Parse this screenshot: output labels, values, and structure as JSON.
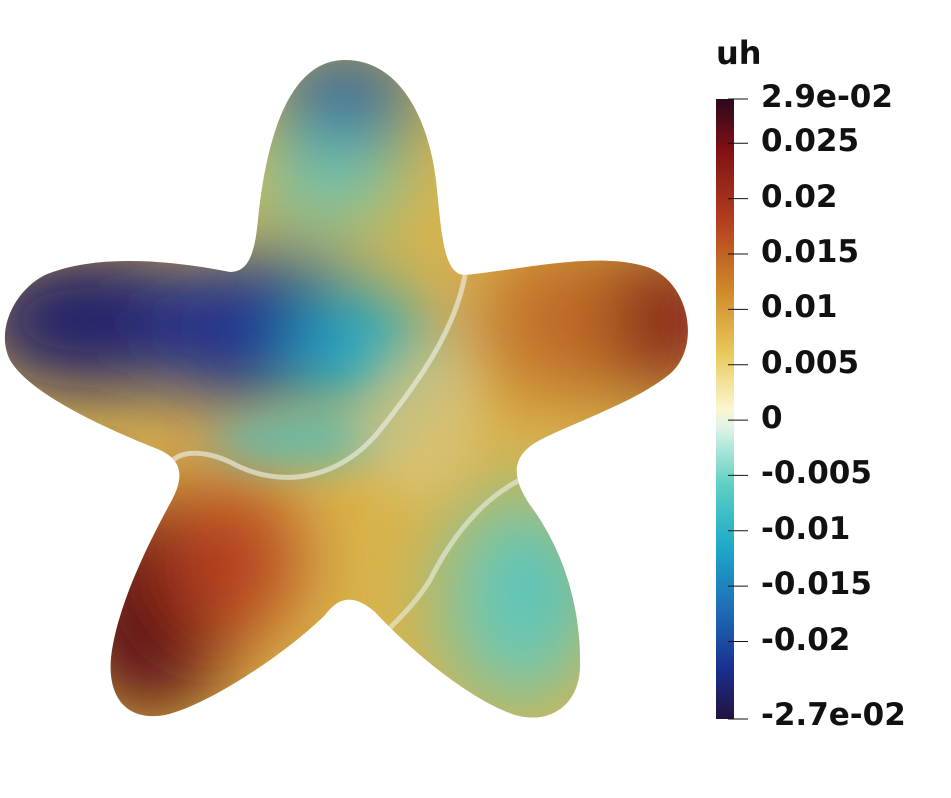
{
  "colorbar": {
    "title": "uh",
    "max_label": "2.9e-02",
    "min_label": "-2.7e-02",
    "min": -0.027,
    "max": 0.029,
    "ticks": [
      {
        "value": 0.025,
        "label": "0.025"
      },
      {
        "value": 0.02,
        "label": "0.02"
      },
      {
        "value": 0.015,
        "label": "0.015"
      },
      {
        "value": 0.01,
        "label": "0.01"
      },
      {
        "value": 0.005,
        "label": "0.005"
      },
      {
        "value": 0,
        "label": "0"
      },
      {
        "value": -0.005,
        "label": "-0.005"
      },
      {
        "value": -0.01,
        "label": "-0.01"
      },
      {
        "value": -0.015,
        "label": "-0.015"
      },
      {
        "value": -0.02,
        "label": "-0.02"
      }
    ],
    "colormap": [
      "#2a0a1c",
      "#7f0f14",
      "#b5401f",
      "#cf8a2a",
      "#e8c95a",
      "#fbf6d0",
      "#dff3e8",
      "#5fd1c3",
      "#1fa9c9",
      "#1e6fb8",
      "#1a2f8f",
      "#23123f"
    ]
  }
}
